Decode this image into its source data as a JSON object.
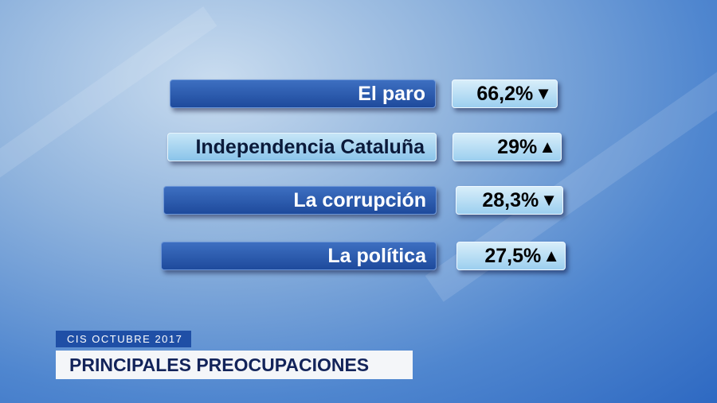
{
  "items": [
    {
      "label": "El paro",
      "value": "66,2%",
      "trend": "▼"
    },
    {
      "label": "Independencia Cataluña",
      "value": "29%",
      "trend": "▲"
    },
    {
      "label": "La corrupción",
      "value": "28,3%",
      "trend": "▼"
    },
    {
      "label": "La política",
      "value": "27,5%",
      "trend": "▲"
    }
  ],
  "footer": {
    "source": "CIS OCTUBRE 2017",
    "title": "PRINCIPALES PREOCUPACIONES"
  }
}
